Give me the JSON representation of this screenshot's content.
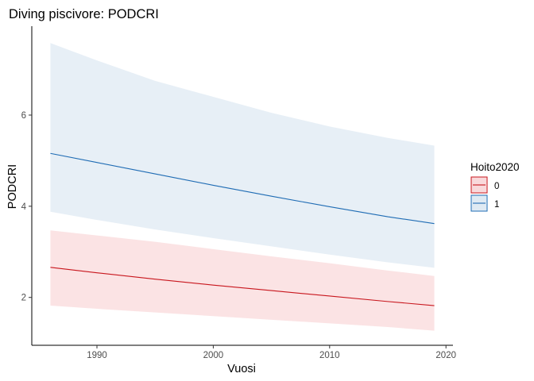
{
  "chart_data": {
    "type": "line",
    "title": "Diving piscivore: PODCRI",
    "xlabel": "Vuosi",
    "ylabel": "PODCRI",
    "xlim": [
      1984.4,
      2020.6
    ],
    "ylim": [
      0.95,
      7.95
    ],
    "x_ticks": [
      1990,
      2000,
      2010,
      2020
    ],
    "y_ticks": [
      2,
      4,
      6
    ],
    "grid": false,
    "legend": {
      "title": "Hoito2020",
      "position": "right"
    },
    "series": [
      {
        "name": "0",
        "color": "#c8161d",
        "ribbon_color": "#f9d9db",
        "x": [
          1986,
          1990,
          1995,
          2000,
          2005,
          2010,
          2015,
          2019
        ],
        "y": [
          2.66,
          2.54,
          2.4,
          2.27,
          2.15,
          2.03,
          1.91,
          1.82
        ],
        "lower": [
          1.82,
          1.75,
          1.67,
          1.59,
          1.51,
          1.43,
          1.35,
          1.27
        ],
        "upper": [
          3.47,
          3.36,
          3.22,
          3.06,
          2.9,
          2.75,
          2.59,
          2.47
        ]
      },
      {
        "name": "1",
        "color": "#1f6cb4",
        "ribbon_color": "#dfeaf3",
        "x": [
          1986,
          1990,
          1995,
          2000,
          2005,
          2010,
          2015,
          2019
        ],
        "y": [
          5.16,
          4.96,
          4.71,
          4.46,
          4.22,
          3.99,
          3.77,
          3.62
        ],
        "lower": [
          3.88,
          3.7,
          3.49,
          3.3,
          3.12,
          2.94,
          2.77,
          2.65
        ],
        "upper": [
          7.58,
          7.2,
          6.75,
          6.4,
          6.05,
          5.75,
          5.5,
          5.33
        ]
      }
    ]
  }
}
